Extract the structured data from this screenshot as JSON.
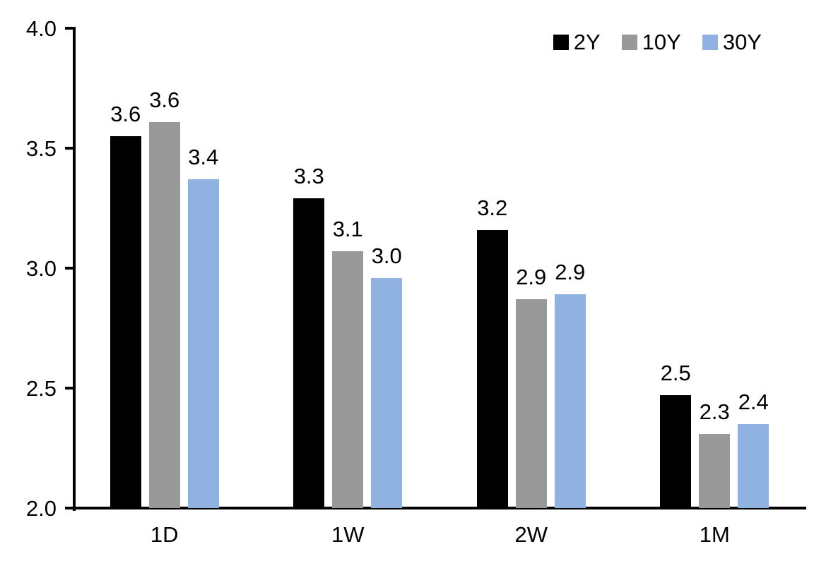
{
  "chart_data": {
    "type": "bar",
    "title": "",
    "xlabel": "",
    "ylabel": "",
    "grid": false,
    "legend_position": "top-right",
    "ylim": [
      2.0,
      4.0
    ],
    "ytick_labels": [
      "2.0",
      "2.5",
      "3.0",
      "3.5",
      "4.0"
    ],
    "categories": [
      "1D",
      "1W",
      "2W",
      "1M"
    ],
    "series": [
      {
        "name": "2Y",
        "color": "#000000",
        "values": [
          3.55,
          3.29,
          3.16,
          2.47
        ],
        "value_labels": [
          "3.6",
          "3.3",
          "3.2",
          "2.5"
        ]
      },
      {
        "name": "10Y",
        "color": "#999999",
        "values": [
          3.61,
          3.07,
          2.87,
          2.31
        ],
        "value_labels": [
          "3.6",
          "3.1",
          "2.9",
          "2.3"
        ]
      },
      {
        "name": "30Y",
        "color": "#8FB2E0",
        "values": [
          3.37,
          2.96,
          2.89,
          2.35
        ],
        "value_labels": [
          "3.4",
          "3.0",
          "2.9",
          "2.4"
        ]
      }
    ],
    "axis_color": "#000000",
    "label_color": "#000000"
  }
}
